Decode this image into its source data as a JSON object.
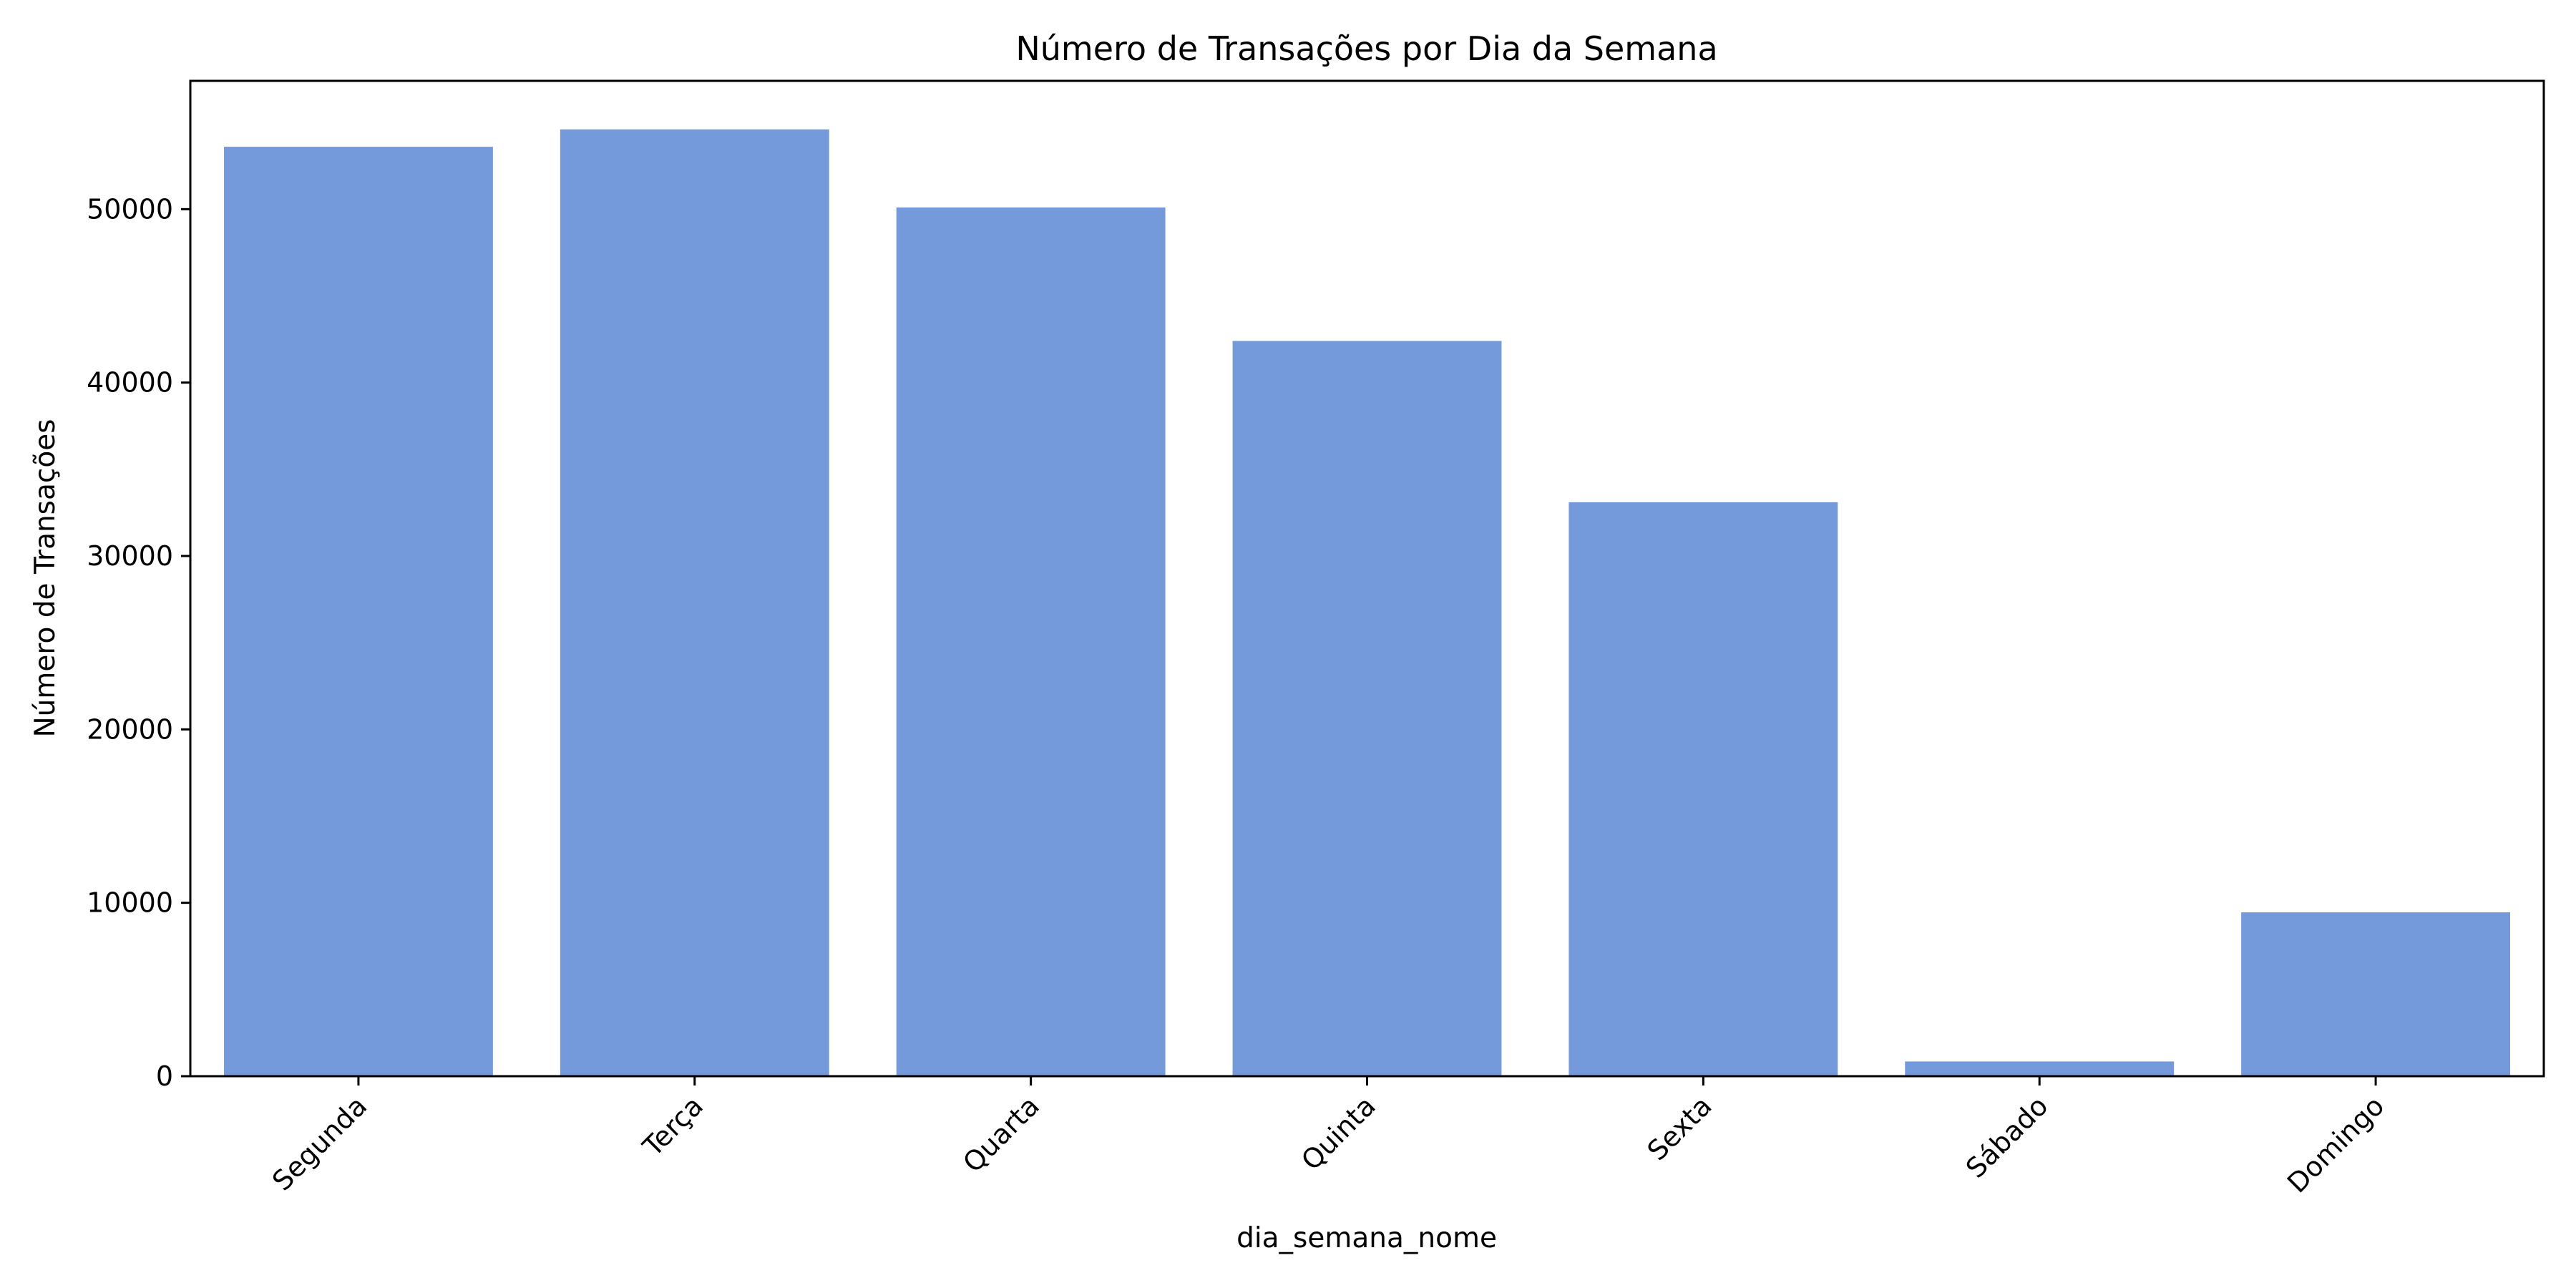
{
  "chart_data": {
    "type": "bar",
    "title": "Número de Transações por Dia da Semana",
    "xlabel": "dia_semana_nome",
    "ylabel": "Número de Transações",
    "categories": [
      "Segunda",
      "Terça",
      "Quarta",
      "Quinta",
      "Sexta",
      "Sábado",
      "Domingo"
    ],
    "values": [
      53600,
      54600,
      50100,
      42400,
      33100,
      850,
      9450
    ],
    "ylim": [
      0,
      57400
    ],
    "yticks": [
      0,
      10000,
      20000,
      30000,
      40000,
      50000
    ],
    "ytick_labels": [
      "0",
      "10000",
      "20000",
      "30000",
      "40000",
      "50000"
    ],
    "bar_color": "#759ADB",
    "grid": false,
    "legend": "none"
  }
}
